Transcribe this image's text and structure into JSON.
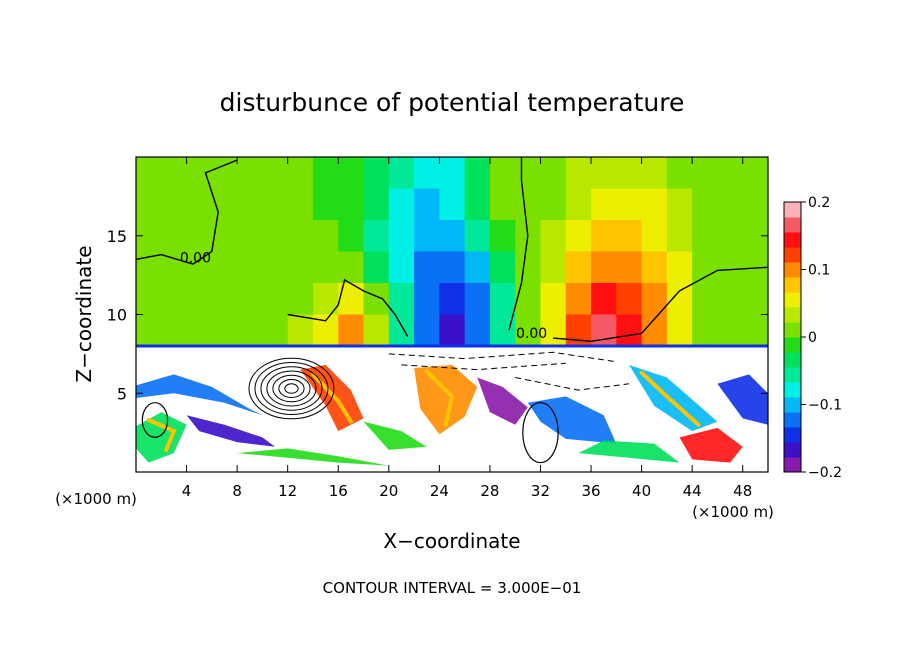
{
  "chart_data": {
    "type": "heatmap",
    "title": "disturbunce of potential temperature",
    "xlabel": "X−coordinate",
    "ylabel": "Z−coordinate",
    "x_unit_left": "(×1000 m)",
    "x_unit_right": "(×1000 m)",
    "xlim": [
      0,
      50
    ],
    "ylim": [
      0,
      20
    ],
    "x_ticks": [
      4,
      8,
      12,
      16,
      20,
      24,
      28,
      32,
      36,
      40,
      44,
      48
    ],
    "y_ticks": [
      5,
      10,
      15
    ],
    "colorbar": {
      "min": -0.2,
      "max": 0.2,
      "ticks": [
        "0.2",
        "0.1",
        "0",
        "−0.1",
        "−0.2"
      ],
      "colors": [
        "#8a1aaa",
        "#3a10c8",
        "#0e30e6",
        "#0a70f5",
        "#00b8f5",
        "#00f0e6",
        "#00e898",
        "#00e05a",
        "#22dc18",
        "#7ae000",
        "#b8e800",
        "#eeee00",
        "#ffc400",
        "#ff8c00",
        "#ff4000",
        "#ff0f0f",
        "#f55a64",
        "#fab4b9"
      ]
    },
    "contour_labels": [
      {
        "text": "0.00",
        "x": 4.7,
        "z": 13.3
      },
      {
        "text": "0.00",
        "x": 31.3,
        "z": 8.5
      }
    ],
    "field_cells": {
      "note_unit": "disturbance of potential temperature, colorbar units",
      "x_centers": [
        1,
        3,
        5,
        7,
        9,
        11,
        13,
        15,
        17,
        19,
        21,
        23,
        25,
        27,
        29,
        31,
        33,
        35,
        37,
        39,
        41,
        43,
        45,
        47,
        49
      ],
      "z_centers": [
        19,
        17,
        15,
        13,
        11,
        9
      ],
      "values": [
        [
          0.0,
          0.0,
          0.0,
          0.0,
          0.0,
          0.0,
          0.0,
          -0.01,
          -0.02,
          -0.03,
          -0.06,
          -0.08,
          -0.07,
          -0.03,
          0.0,
          0.0,
          0.01,
          0.03,
          0.04,
          0.04,
          0.03,
          0.02,
          0.01,
          0.0,
          0.0
        ],
        [
          0.0,
          0.0,
          0.0,
          0.0,
          0.0,
          0.0,
          0.0,
          -0.01,
          -0.02,
          -0.04,
          -0.07,
          -0.09,
          -0.08,
          -0.04,
          0.0,
          0.0,
          0.02,
          0.04,
          0.06,
          0.06,
          0.05,
          0.03,
          0.02,
          0.0,
          0.0
        ],
        [
          0.0,
          0.0,
          0.0,
          0.0,
          0.0,
          0.0,
          0.0,
          0.0,
          -0.02,
          -0.05,
          -0.08,
          -0.1,
          -0.1,
          -0.06,
          -0.02,
          0.0,
          0.03,
          0.06,
          0.08,
          0.08,
          0.06,
          0.04,
          0.02,
          0.0,
          0.0
        ],
        [
          0.0,
          0.0,
          0.0,
          0.0,
          0.0,
          0.0,
          0.0,
          0.01,
          0.0,
          -0.04,
          -0.08,
          -0.12,
          -0.13,
          -0.09,
          -0.04,
          0.0,
          0.04,
          0.08,
          0.1,
          0.1,
          0.08,
          0.05,
          0.02,
          0.0,
          0.0
        ],
        [
          0.0,
          0.0,
          0.0,
          0.0,
          0.0,
          0.0,
          0.02,
          0.04,
          0.06,
          0.02,
          -0.06,
          -0.12,
          -0.15,
          -0.12,
          -0.06,
          0.0,
          0.05,
          0.11,
          0.14,
          0.13,
          0.1,
          0.06,
          0.02,
          0.0,
          0.0
        ],
        [
          0.0,
          0.0,
          0.0,
          0.0,
          0.0,
          0.01,
          0.03,
          0.06,
          0.09,
          0.04,
          -0.05,
          -0.12,
          -0.16,
          -0.13,
          -0.06,
          0.0,
          0.05,
          0.12,
          0.16,
          0.14,
          0.1,
          0.06,
          0.02,
          0.0,
          0.0
        ]
      ]
    },
    "annotation": "CONTOUR INTERVAL = 3.000E−01"
  }
}
